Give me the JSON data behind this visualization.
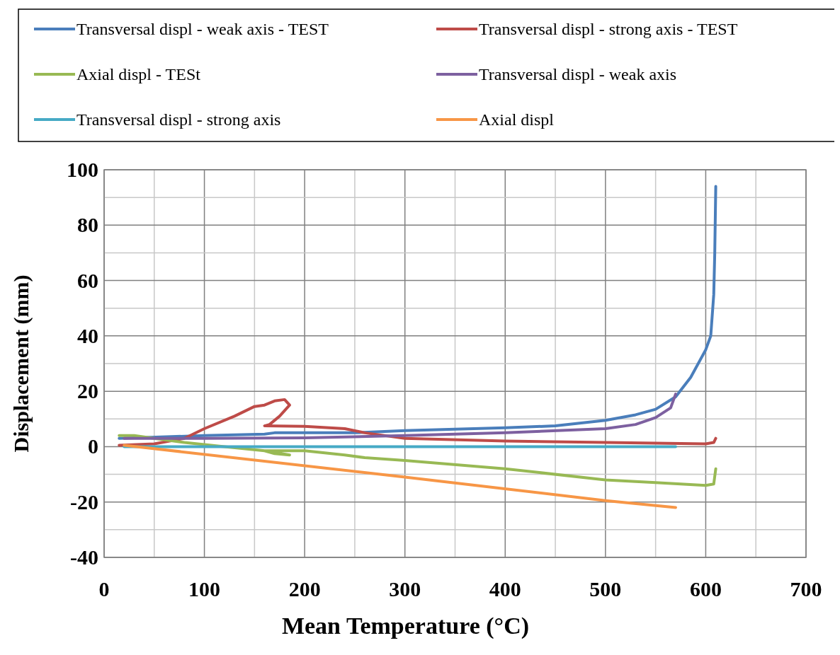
{
  "chart_data": {
    "type": "line",
    "xlabel": "Mean Temperature (°C)",
    "ylabel": "Displacement (mm)",
    "xlim": [
      0,
      700
    ],
    "ylim": [
      -40,
      100
    ],
    "xticks": [
      0,
      {
        "value": 50,
        "label": null
      },
      100,
      {
        "value": 150,
        "label": null
      },
      200,
      {
        "value": 250,
        "label": null
      },
      300,
      {
        "value": 350,
        "label": null
      },
      400,
      {
        "value": 450,
        "label": null
      },
      500,
      {
        "value": 550,
        "label": null
      },
      600,
      {
        "value": 650,
        "label": null
      },
      700
    ],
    "yticks": [
      -40,
      {
        "value": -30,
        "label": null
      },
      -20,
      {
        "value": -10,
        "label": null
      },
      0,
      {
        "value": 10,
        "label": null
      },
      20,
      {
        "value": 30,
        "label": null
      },
      40,
      {
        "value": 50,
        "label": null
      },
      60,
      {
        "value": 70,
        "label": null
      },
      80,
      {
        "value": 90,
        "label": null
      },
      100
    ],
    "grid": true,
    "legend": "top",
    "marker": "none",
    "line_style": "solid",
    "series": [
      {
        "name": "Transversal displ - weak axis - TEST",
        "color": "#4a7ebb",
        "x": [
          15,
          100,
          160,
          170,
          250,
          300,
          400,
          450,
          500,
          530,
          550,
          570,
          585,
          600,
          605,
          608,
          609,
          610
        ],
        "values": [
          3,
          4,
          4.5,
          5,
          5,
          5.8,
          6.8,
          7.5,
          9.5,
          11.5,
          13.5,
          18,
          25,
          35,
          40,
          55,
          70,
          94
        ]
      },
      {
        "name": "Transversal displ - strong axis - TEST",
        "color": "#be4b48",
        "x": [
          15,
          50,
          80,
          100,
          130,
          150,
          160,
          170,
          180,
          185,
          175,
          165,
          160,
          200,
          240,
          260,
          300,
          400,
          500,
          600,
          608,
          610
        ],
        "values": [
          0.5,
          1,
          3,
          6.5,
          11,
          14.5,
          15,
          16.5,
          17,
          15,
          11,
          8,
          7.5,
          7.3,
          6.5,
          5,
          3,
          2,
          1.5,
          1,
          1.5,
          3
        ]
      },
      {
        "name": "Axial displ - TESt",
        "color": "#98b954",
        "x": [
          15,
          30,
          50,
          80,
          120,
          160,
          185,
          170,
          160,
          200,
          240,
          260,
          300,
          400,
          500,
          550,
          600,
          608,
          610
        ],
        "values": [
          4,
          4,
          3,
          1.5,
          0,
          -1.5,
          -3,
          -2.5,
          -1.5,
          -1.5,
          -3,
          -4,
          -5,
          -8,
          -12,
          -13,
          -14,
          -13.5,
          -8
        ]
      },
      {
        "name": "Transversal displ - weak axis",
        "color": "#7d60a0",
        "x": [
          20,
          100,
          200,
          300,
          400,
          500,
          530,
          550,
          565,
          570
        ],
        "values": [
          3,
          3,
          3.2,
          4,
          5,
          6.5,
          8,
          10.5,
          14,
          19
        ]
      },
      {
        "name": "Transversal displ - strong axis",
        "color": "#46aac5",
        "x": [
          20,
          570
        ],
        "values": [
          0,
          0
        ]
      },
      {
        "name": "Axial displ",
        "color": "#f79646",
        "x": [
          20,
          300,
          500,
          570
        ],
        "values": [
          0.5,
          -11,
          -19.5,
          -22
        ]
      }
    ]
  }
}
